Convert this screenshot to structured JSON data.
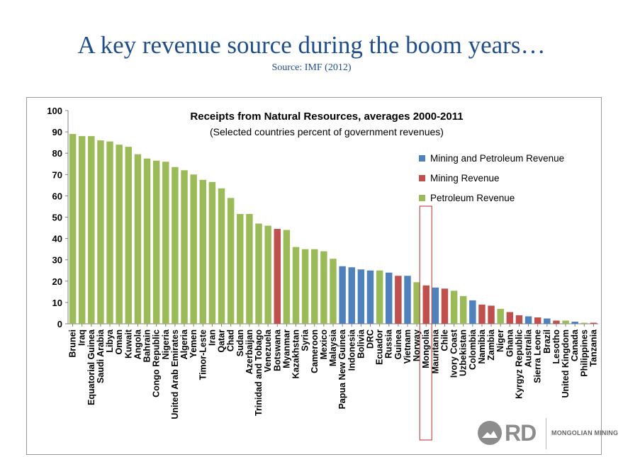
{
  "slide": {
    "title": "A key  revenue  source during the boom  years…",
    "source": "Source: IMF (2012)"
  },
  "logo": {
    "mark": "RD",
    "text": "MONGOLIAN MINING"
  },
  "colors": {
    "mining_petroleum": "#4f81bd",
    "mining": "#c0504d",
    "petroleum": "#9bbb59",
    "highlight": "#c0504d"
  },
  "chart_data": {
    "type": "bar",
    "title": "Receipts from Natural Resources, averages 2000-2011",
    "subtitle": "(Selected countries percent of  government revenues)",
    "ylim": [
      0,
      100
    ],
    "yticks": [
      0,
      10,
      20,
      30,
      40,
      50,
      60,
      70,
      80,
      90,
      100
    ],
    "legend_position": "right",
    "legend": [
      {
        "key": "mining_petroleum",
        "label": "Mining and Petroleum Revenue"
      },
      {
        "key": "mining",
        "label": "Mining Revenue"
      },
      {
        "key": "petroleum",
        "label": "Petroleum Revenue"
      }
    ],
    "highlight": "Mongolia",
    "categories": [
      "Brunei",
      "Iraq",
      "Equatorial Guinea",
      "Saudi Arabia",
      "Libya",
      "Oman",
      "Kuwait",
      "Angola",
      "Bahrain",
      "Congo Republic",
      "Nigeria",
      "United Arab Emirates",
      "Algeria",
      "Yemen",
      "Timor-Leste",
      "Iran",
      "Qatar",
      "Chad",
      "Sudan",
      "Azerbaijan",
      "Trinidad and Tobago",
      "Venezuela",
      "Botswana",
      "Myanmar",
      "Kazakhstan",
      "Syria",
      "Cameroon",
      "Mexico",
      "Malaysia",
      "Papua New Guinea",
      "Indonesia",
      "Bolivia",
      "DRC",
      "Ecuador",
      "Russia",
      "Guinea",
      "Vietnam",
      "Norway",
      "Mongolia",
      "Mauritania",
      "Chile",
      "Ivory Coast",
      "Uzbekistan",
      "Colombia",
      "Namibia",
      "Zambia",
      "Niger",
      "Ghana",
      "Kyrgyz Republic",
      "Australia",
      "Sierra Leone",
      "Brazil",
      "Lesotho",
      "United Kingdom",
      "Canada",
      "Philippines",
      "Tanzania"
    ],
    "values": [
      89,
      88,
      88,
      86,
      85.5,
      84,
      83,
      79.5,
      77.5,
      76.5,
      76,
      73.5,
      72,
      70,
      67.5,
      66.5,
      63.5,
      59,
      51.5,
      51.5,
      47,
      46,
      44.5,
      44,
      36,
      35,
      35,
      34,
      30.5,
      27,
      26.5,
      25.5,
      25,
      25,
      24,
      22.5,
      22.5,
      19.5,
      18,
      17,
      16.5,
      15.5,
      13,
      11,
      9,
      8.5,
      7,
      5.5,
      4,
      3.5,
      3,
      2.5,
      1.5,
      1.5,
      1,
      0.5,
      0.5
    ],
    "series_type": [
      "petroleum",
      "petroleum",
      "petroleum",
      "petroleum",
      "petroleum",
      "petroleum",
      "petroleum",
      "petroleum",
      "petroleum",
      "petroleum",
      "petroleum",
      "petroleum",
      "petroleum",
      "petroleum",
      "petroleum",
      "petroleum",
      "petroleum",
      "petroleum",
      "petroleum",
      "petroleum",
      "petroleum",
      "petroleum",
      "mining",
      "petroleum",
      "petroleum",
      "petroleum",
      "petroleum",
      "petroleum",
      "petroleum",
      "mining_petroleum",
      "mining_petroleum",
      "mining_petroleum",
      "mining_petroleum",
      "petroleum",
      "mining_petroleum",
      "mining",
      "mining_petroleum",
      "petroleum",
      "mining",
      "mining_petroleum",
      "mining",
      "petroleum",
      "petroleum",
      "mining_petroleum",
      "mining",
      "mining",
      "petroleum",
      "mining",
      "mining",
      "mining_petroleum",
      "mining",
      "mining_petroleum",
      "mining",
      "petroleum",
      "mining_petroleum",
      "petroleum",
      "mining"
    ]
  }
}
